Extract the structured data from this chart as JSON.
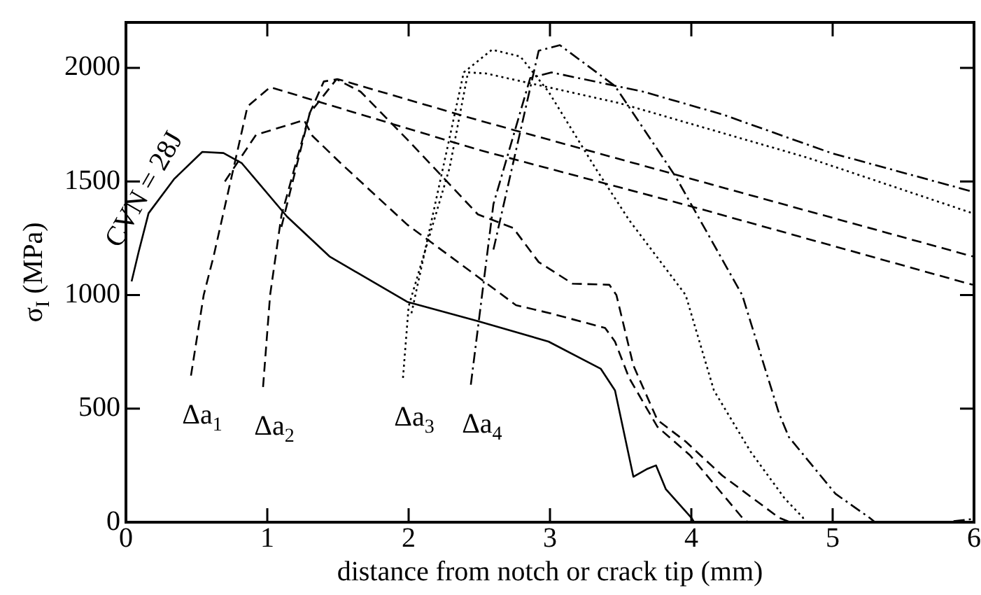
{
  "chart_data": {
    "type": "line",
    "xlabel": "distance from notch or crack tip (mm)",
    "ylabel": "σ$_{I}$ (MPa)",
    "xlim": [
      0,
      6
    ],
    "ylim": [
      0,
      2200
    ],
    "xticks": [
      0,
      1,
      2,
      3,
      4,
      5,
      6
    ],
    "yticks": [
      0,
      500,
      1000,
      1500,
      2000
    ],
    "grid": false,
    "legend": false,
    "marker": "none",
    "series": [
      {
        "name": "CVN = 28J",
        "color": "#000000",
        "line_style": "solid",
        "x": [
          0.04,
          0.09,
          0.16,
          0.34,
          0.54,
          0.69,
          0.82,
          1.14,
          1.44,
          1.99,
          2.49,
          2.99,
          3.36,
          3.46,
          3.59,
          3.69,
          3.75,
          3.82,
          4.0,
          4.02
        ],
        "values": [
          1060,
          1190,
          1360,
          1510,
          1630,
          1625,
          1580,
          1345,
          1170,
          970,
          885,
          795,
          675,
          580,
          200,
          235,
          250,
          145,
          20,
          0
        ]
      },
      {
        "color": "#000000",
        "line_style": "dashed",
        "x": [
          0.7,
          0.92,
          1.26,
          1.32,
          1.52,
          1.99,
          2.49,
          2.76,
          3.0,
          3.39,
          3.46,
          3.56,
          3.76,
          3.99,
          4.36,
          4.4
        ],
        "values": [
          1500,
          1705,
          1770,
          1700,
          1580,
          1310,
          1080,
          955,
          920,
          855,
          795,
          635,
          420,
          295,
          20,
          0
        ]
      },
      {
        "color": "#000000",
        "line_style": "dashed",
        "x": [
          1.1,
          1.3,
          1.49,
          1.66,
          1.99,
          2.49,
          2.74,
          2.92,
          3.16,
          3.42,
          3.47,
          3.59,
          3.76,
          3.96,
          4.22,
          4.62,
          4.7
        ],
        "values": [
          1300,
          1800,
          1950,
          1895,
          1685,
          1355,
          1295,
          1145,
          1050,
          1045,
          1000,
          690,
          450,
          355,
          205,
          20,
          0
        ]
      },
      {
        "color": "#000000",
        "line_style": "dotted",
        "x": [
          2.02,
          2.39,
          2.59,
          2.79,
          2.99,
          3.32,
          3.56,
          3.96,
          4.16,
          4.42,
          4.66,
          4.79,
          4.8
        ],
        "values": [
          920,
          1980,
          2080,
          2050,
          1895,
          1560,
          1330,
          1000,
          580,
          310,
          105,
          20,
          0
        ]
      },
      {
        "color": "#000000",
        "line_style": "dashdot",
        "x": [
          2.6,
          2.92,
          3.07,
          3.46,
          3.89,
          4.36,
          4.62,
          4.69,
          5.02,
          5.26,
          5.3,
          5.8,
          6.0
        ],
        "values": [
          1200,
          2075,
          2100,
          1920,
          1520,
          1000,
          480,
          375,
          125,
          20,
          0,
          0,
          15
        ]
      },
      {
        "name": "Δa$_{1}$",
        "color": "#000000",
        "line_style": "dashed",
        "x": [
          0.46,
          0.55,
          0.62,
          0.86,
          1.02,
          2.49,
          4.0,
          5.99
        ],
        "values": [
          645,
          1000,
          1170,
          1830,
          1915,
          1640,
          1390,
          1045
        ]
      },
      {
        "name": "Δa$_{2}$",
        "color": "#000000",
        "line_style": "dashed",
        "x": [
          0.97,
          1.02,
          1.1,
          1.3,
          1.4,
          1.5,
          2.49,
          5.99
        ],
        "values": [
          595,
          1000,
          1350,
          1800,
          1940,
          1950,
          1770,
          1170
        ]
      },
      {
        "name": "Δa$_{3}$",
        "color": "#000000",
        "line_style": "dotted",
        "x": [
          1.96,
          2.0,
          2.29,
          2.42,
          2.55,
          3.49,
          4.82,
          5.99
        ],
        "values": [
          635,
          950,
          1560,
          1980,
          1975,
          1845,
          1605,
          1360
        ]
      },
      {
        "name": "Δa$_{4}$",
        "color": "#000000",
        "line_style": "dashdot",
        "x": [
          2.44,
          2.6,
          2.86,
          3.01,
          3.66,
          4.22,
          4.99,
          5.99
        ],
        "values": [
          605,
          1400,
          1955,
          1980,
          1895,
          1795,
          1625,
          1455
        ]
      }
    ]
  }
}
